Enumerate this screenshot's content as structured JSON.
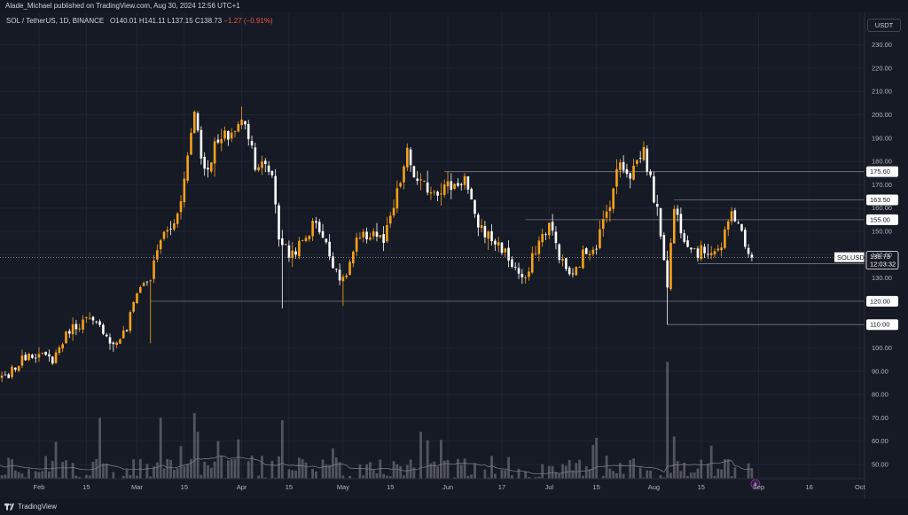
{
  "header": {
    "publisher": "Alade_Michael published on TradingView.com, Aug 30, 2024 12:56 UTC+1"
  },
  "legend": {
    "symbol": "SOL / TetherUS, 1D, BINANCE",
    "o_label": "O",
    "o_value": "140.01",
    "h_label": "H",
    "h_value": "141.11",
    "l_label": "L",
    "l_value": "137.15",
    "c_label": "C",
    "c_value": "138.73",
    "change": "−1.27 (−0.91%)"
  },
  "currency_button": "USDT",
  "footer": {
    "brand": "TradingView",
    "logo_icon": "tradingview-logo-icon",
    "flash_icon": "lightning-icon"
  },
  "colors": {
    "background": "#161a25",
    "up": "#f7a21b",
    "down": "#ffffff",
    "line": "#787b86",
    "volume": "#5d606b",
    "volume_ma": "#787b86"
  },
  "chart_data": {
    "type": "candlestick",
    "y_axis": {
      "ticks": [
        "230.00",
        "220.00",
        "210.00",
        "200.00",
        "190.00",
        "180.00",
        "170.00",
        "160.00",
        "150.00",
        "140.00",
        "130.00",
        "100.00",
        "90.00",
        "80.00",
        "70.00",
        "60.00",
        "50.00"
      ],
      "range": [
        40,
        240
      ]
    },
    "x_axis": {
      "ticks": [
        "Feb",
        "15",
        "Mar",
        "15",
        "Apr",
        "15",
        "May",
        "15",
        "Jun",
        "17",
        "Jul",
        "15",
        "Aug",
        "15",
        "Sep",
        "16",
        "Oct"
      ]
    },
    "last_price": {
      "symbol": "SOLUSDT",
      "value": "138.73",
      "countdown": "12:03:32"
    },
    "levels": [
      {
        "label": "175.60",
        "value": 175.6,
        "from": "2024-05-31"
      },
      {
        "label": "163.50",
        "value": 163.5,
        "from": "2024-08-07"
      },
      {
        "label": "155.00",
        "value": 155.0,
        "from": "2024-06-24"
      },
      {
        "label": "136.10",
        "value": 136.1,
        "from": "2024-08-14"
      },
      {
        "label": "120.00",
        "value": 120.0,
        "from": "2024-03-05"
      },
      {
        "label": "110.00",
        "value": 110.0,
        "from": "2024-08-05"
      }
    ],
    "series": [
      {
        "kind": "close_waypoints",
        "points": [
          [
            "2024-01-15",
            86
          ],
          [
            "2024-01-22",
            87
          ],
          [
            "2024-01-29",
            98
          ],
          [
            "2024-02-05",
            95
          ],
          [
            "2024-02-10",
            108
          ],
          [
            "2024-02-15",
            112
          ],
          [
            "2024-02-20",
            108
          ],
          [
            "2024-02-23",
            101
          ],
          [
            "2024-02-27",
            108
          ],
          [
            "2024-03-01",
            125
          ],
          [
            "2024-03-05",
            130
          ],
          [
            "2024-03-08",
            147
          ],
          [
            "2024-03-12",
            153
          ],
          [
            "2024-03-15",
            172
          ],
          [
            "2024-03-18",
            203
          ],
          [
            "2024-03-21",
            175
          ],
          [
            "2024-03-24",
            186
          ],
          [
            "2024-03-27",
            190
          ],
          [
            "2024-03-31",
            195
          ],
          [
            "2024-04-02",
            198
          ],
          [
            "2024-04-05",
            180
          ],
          [
            "2024-04-10",
            175
          ],
          [
            "2024-04-12",
            148
          ],
          [
            "2024-04-15",
            140
          ],
          [
            "2024-04-19",
            145
          ],
          [
            "2024-04-23",
            155
          ],
          [
            "2024-04-27",
            140
          ],
          [
            "2024-05-01",
            128
          ],
          [
            "2024-05-05",
            145
          ],
          [
            "2024-05-10",
            150
          ],
          [
            "2024-05-13",
            145
          ],
          [
            "2024-05-16",
            160
          ],
          [
            "2024-05-20",
            183
          ],
          [
            "2024-05-23",
            170
          ],
          [
            "2024-05-28",
            168
          ],
          [
            "2024-06-03",
            170
          ],
          [
            "2024-06-06",
            173
          ],
          [
            "2024-06-09",
            155
          ],
          [
            "2024-06-13",
            148
          ],
          [
            "2024-06-17",
            143
          ],
          [
            "2024-06-20",
            136
          ],
          [
            "2024-06-24",
            128
          ],
          [
            "2024-06-27",
            143
          ],
          [
            "2024-07-01",
            153
          ],
          [
            "2024-07-05",
            136
          ],
          [
            "2024-07-08",
            130
          ],
          [
            "2024-07-11",
            140
          ],
          [
            "2024-07-15",
            145
          ],
          [
            "2024-07-18",
            158
          ],
          [
            "2024-07-22",
            180
          ],
          [
            "2024-07-25",
            175
          ],
          [
            "2024-07-29",
            185
          ],
          [
            "2024-08-01",
            165
          ],
          [
            "2024-08-03",
            150
          ],
          [
            "2024-08-05",
            128
          ],
          [
            "2024-08-07",
            160
          ],
          [
            "2024-08-10",
            148
          ],
          [
            "2024-08-14",
            141
          ],
          [
            "2024-08-17",
            142
          ],
          [
            "2024-08-21",
            143
          ],
          [
            "2024-08-24",
            158
          ],
          [
            "2024-08-26",
            155
          ],
          [
            "2024-08-28",
            142
          ],
          [
            "2024-08-30",
            138.73
          ]
        ]
      }
    ],
    "volume": {
      "axis_overlap": "bottom",
      "tall_bars": [
        [
          "2024-02-19",
          70
        ],
        [
          "2024-03-08",
          70
        ],
        [
          "2024-03-18",
          72
        ],
        [
          "2024-03-19",
          64
        ],
        [
          "2024-04-13",
          69
        ],
        [
          "2024-05-24",
          64
        ],
        [
          "2024-08-05",
          94
        ],
        [
          "2024-08-07",
          62
        ]
      ],
      "typical_range": [
        42,
        62
      ]
    }
  }
}
